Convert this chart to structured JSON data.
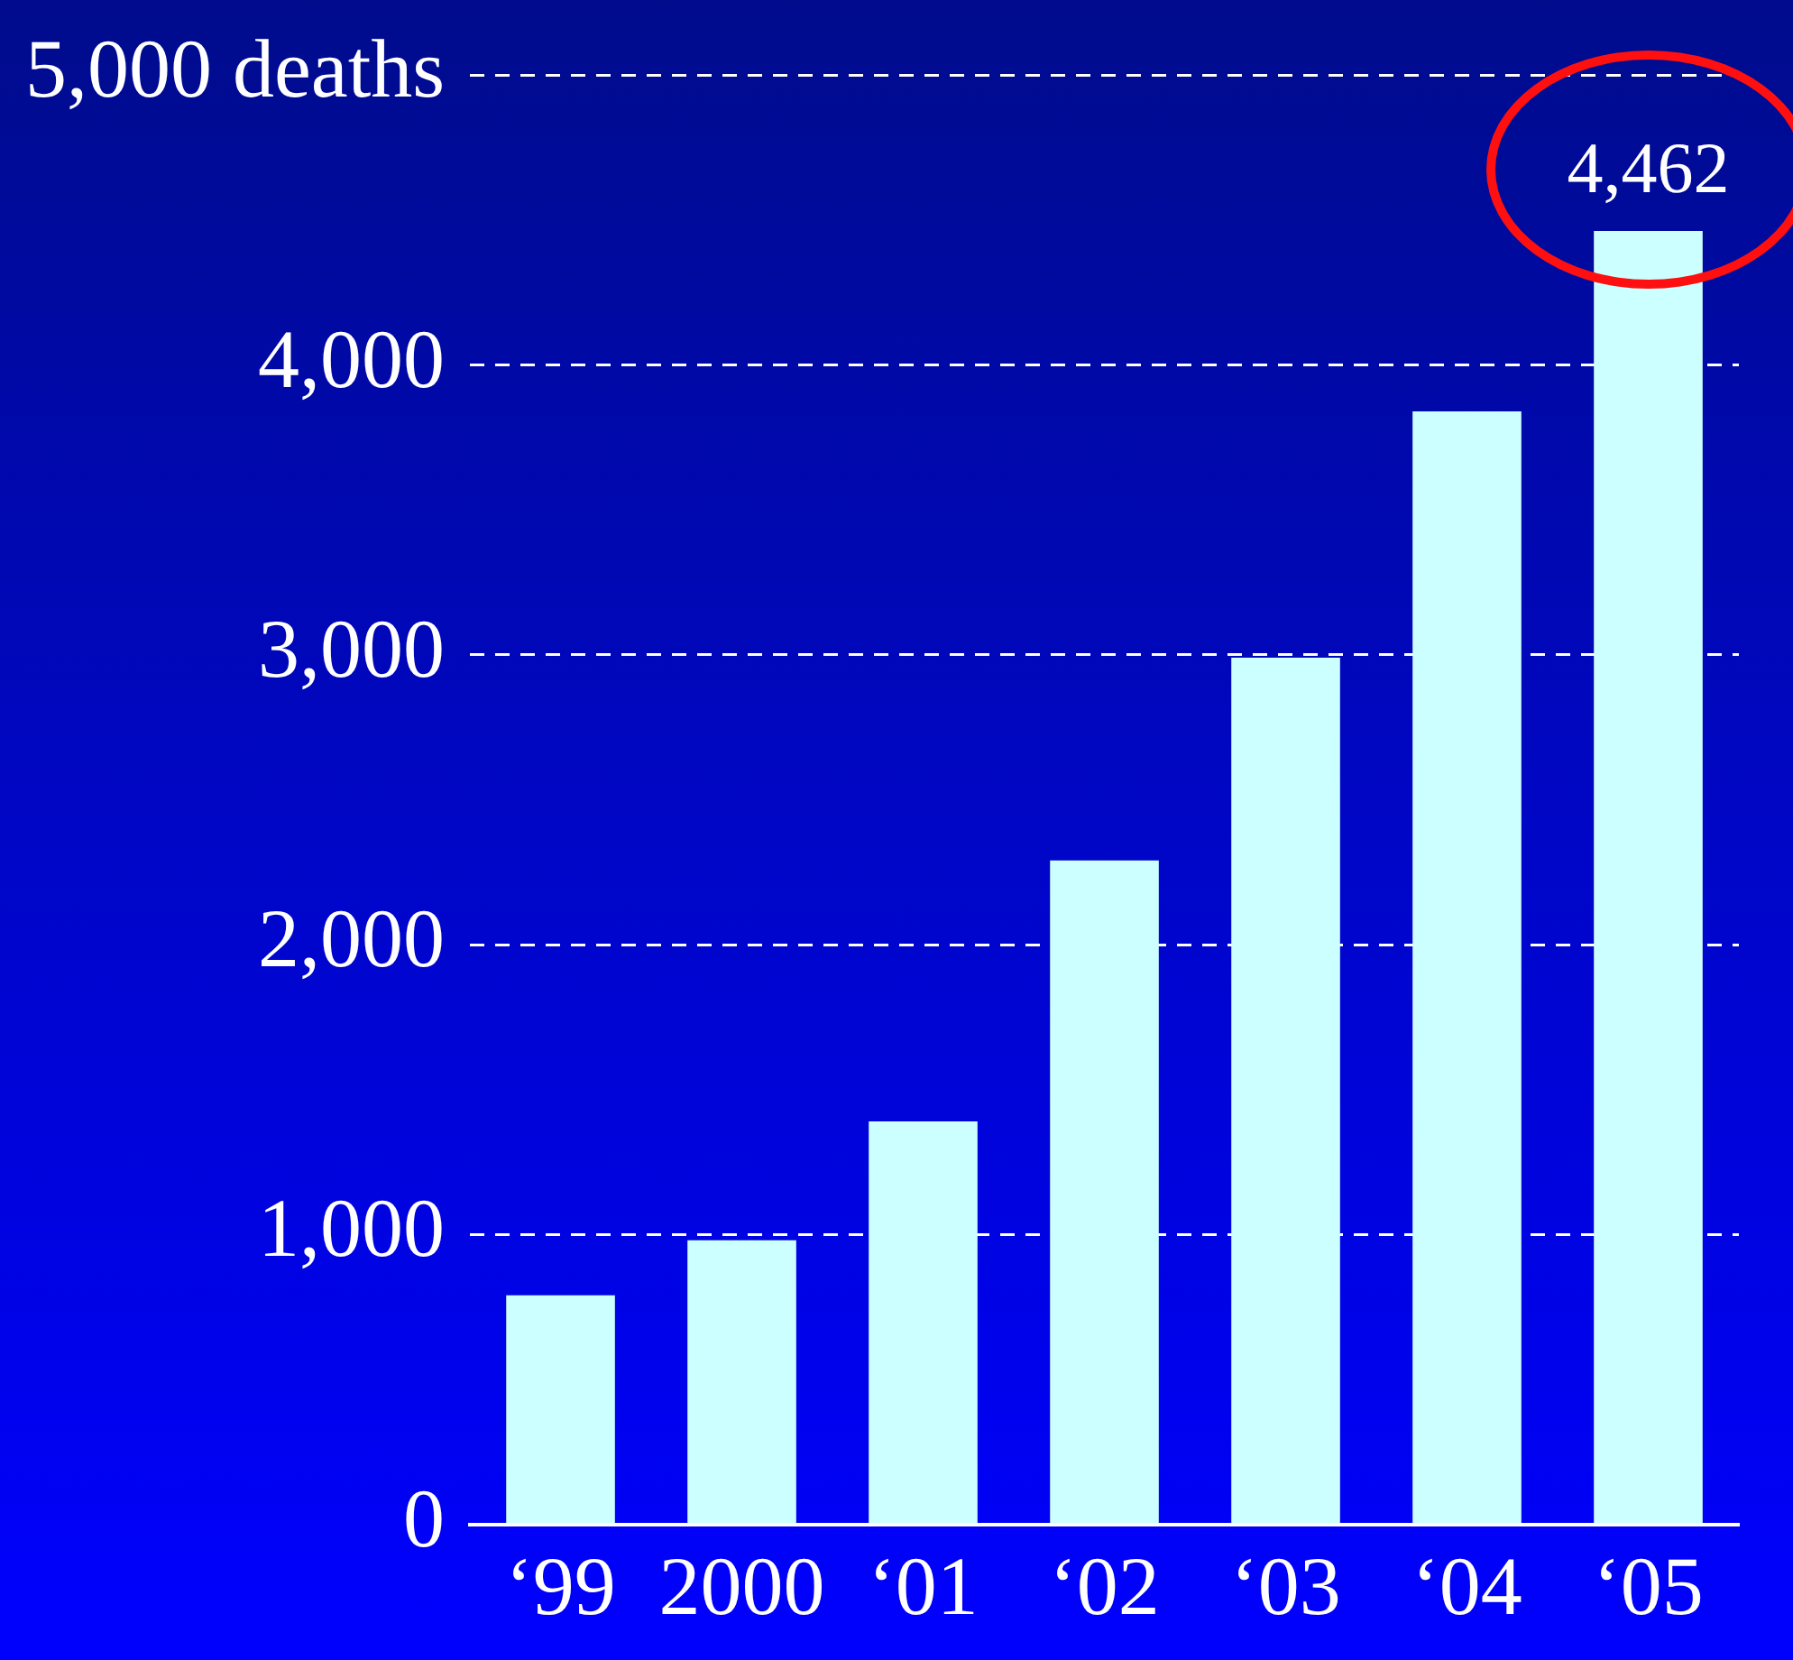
{
  "chart_data": {
    "type": "bar",
    "categories": [
      "‘99",
      "2000",
      "‘01",
      "‘02",
      "‘03",
      "‘04",
      "‘05"
    ],
    "values": [
      790,
      980,
      1390,
      2290,
      2990,
      3840,
      4462
    ],
    "value_labels": [
      null,
      null,
      null,
      null,
      null,
      null,
      "4,462"
    ],
    "color": "#ccffff",
    "ylim": [
      0,
      5000
    ],
    "yticks": [
      0,
      {
        "value": 1000,
        "label": "1,000"
      },
      {
        "value": 2000,
        "label": "2,000"
      },
      {
        "value": 3000,
        "label": "3,000"
      },
      {
        "value": 4000,
        "label": "4,000"
      },
      {
        "value": 5000,
        "label": "5,000 deaths"
      }
    ],
    "grid": "y",
    "line_style": "dashed",
    "legend": false
  }
}
